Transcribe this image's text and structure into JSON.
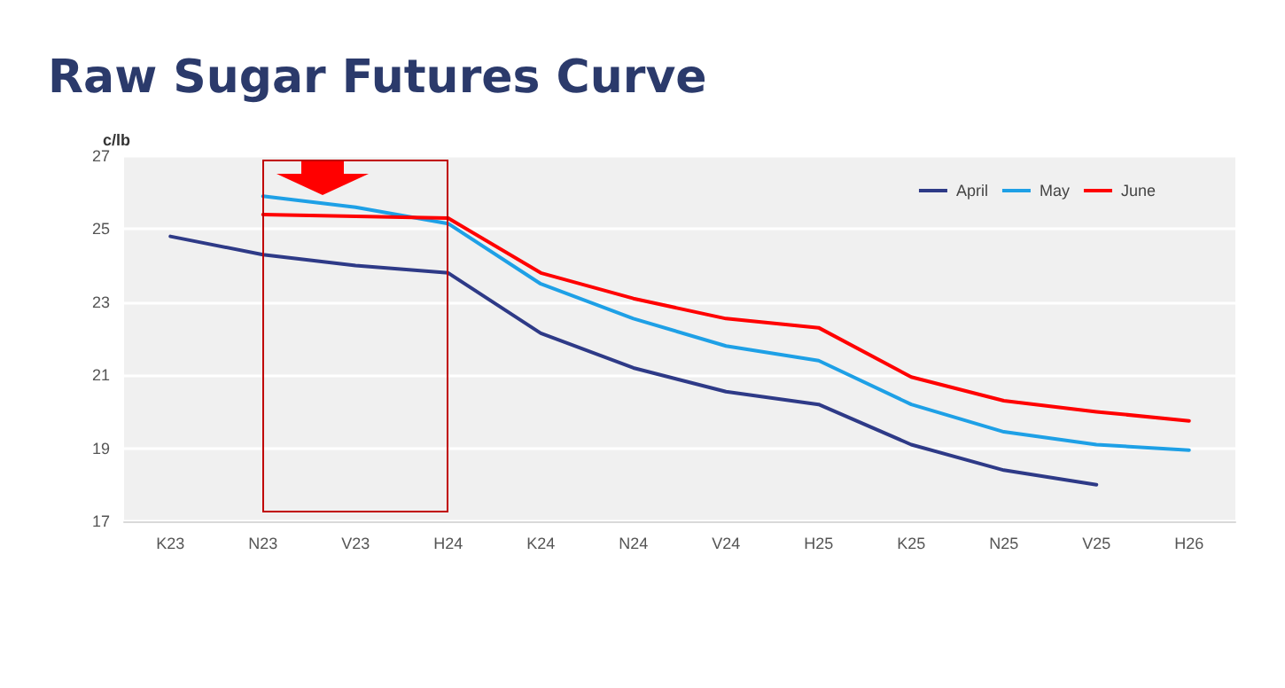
{
  "chart_data": {
    "type": "line",
    "title": "Raw Sugar Futures Curve",
    "ylabel": "c/lb",
    "categories": [
      "K23",
      "N23",
      "V23",
      "H24",
      "K24",
      "N24",
      "V24",
      "H25",
      "K25",
      "N25",
      "V25",
      "H26"
    ],
    "series": [
      {
        "name": "April",
        "color": "#2e3a87",
        "values": [
          24.8,
          24.3,
          24.0,
          23.8,
          22.15,
          21.2,
          20.55,
          20.2,
          19.1,
          18.4,
          18.0,
          null
        ]
      },
      {
        "name": "May",
        "color": "#1ea0e6",
        "values": [
          null,
          25.9,
          25.6,
          25.15,
          23.5,
          22.55,
          21.8,
          21.4,
          20.2,
          19.45,
          19.1,
          18.95
        ]
      },
      {
        "name": "June",
        "color": "#ff0000",
        "values": [
          null,
          25.4,
          25.35,
          25.3,
          23.8,
          23.1,
          22.55,
          22.3,
          20.95,
          20.3,
          20.0,
          19.75
        ]
      }
    ],
    "ylim": [
      17,
      27
    ],
    "yticks": [
      17,
      19,
      21,
      23,
      25,
      27
    ],
    "grid": "y",
    "legend": "top right",
    "marker": "none",
    "line_style": "solid"
  }
}
